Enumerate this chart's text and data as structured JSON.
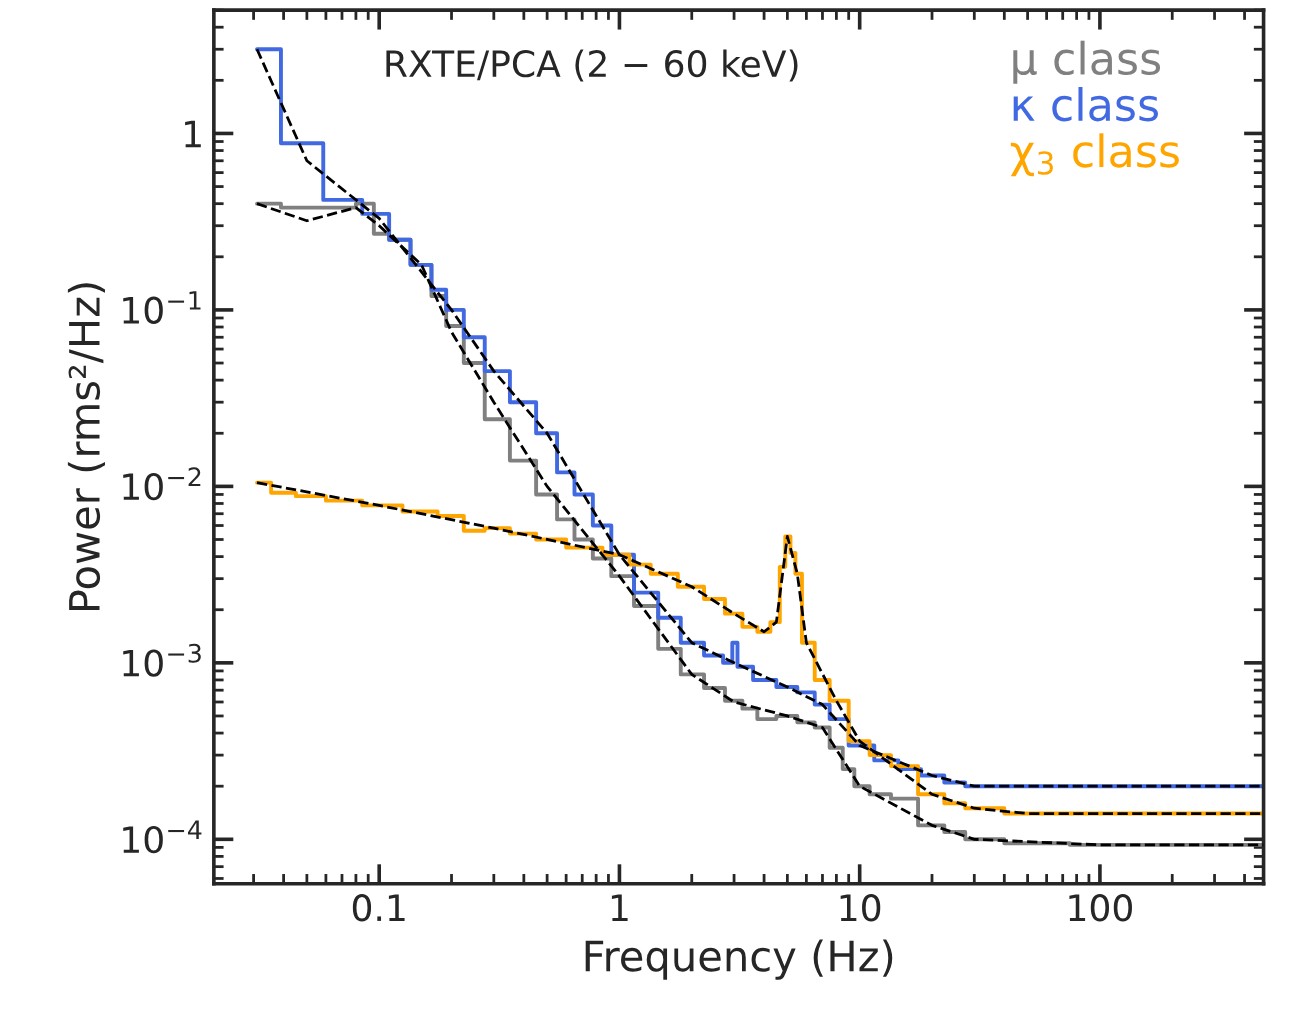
{
  "chart_data": {
    "type": "step",
    "xlabel": "Frequency (Hz)",
    "ylabel": "Power (rms²/Hz)",
    "log": "xy",
    "xlim": [
      0.0205,
      480
    ],
    "ylim": [
      5.6e-05,
      5
    ],
    "xticks": [
      0.1,
      1,
      10,
      100
    ],
    "yticks": [
      {
        "value": 0.0001,
        "label": "10$^{−4}$"
      },
      {
        "value": 0.001,
        "label": "10$^{−3}$"
      },
      {
        "value": 0.01,
        "label": "10$^{−2}$"
      },
      {
        "value": 0.1,
        "label": "10$^{−1}$"
      },
      1
    ],
    "grid": false,
    "annotations": [
      "RXTE/PCA (2 − 60 keV)"
    ],
    "series": [
      {
        "name": "μ class",
        "color": "#808080",
        "x": [
          0.031,
          0.047,
          0.07,
          0.09,
          0.1,
          0.12,
          0.15,
          0.18,
          0.2,
          0.25,
          0.3,
          0.4,
          0.5,
          0.6,
          0.7,
          0.85,
          1,
          1.3,
          1.6,
          2,
          2.5,
          3,
          3.5,
          4,
          5,
          6,
          7,
          8,
          9,
          10,
          12,
          15,
          20,
          25,
          30,
          50,
          100,
          200,
          480
        ],
        "values": [
          0.4,
          0.38,
          0.38,
          0.4,
          0.27,
          0.25,
          0.18,
          0.12,
          0.081,
          0.05,
          0.024,
          0.014,
          0.009,
          0.0065,
          0.005,
          0.0039,
          0.0031,
          0.0021,
          0.0012,
          0.00086,
          0.00072,
          0.00061,
          0.00055,
          0.00048,
          0.0005,
          0.00046,
          0.00043,
          0.00033,
          0.00025,
          0.0002,
          0.00018,
          0.00017,
          0.00012,
          0.00011,
          0.0001,
          9.5e-05,
          9.3e-05,
          9.3e-05,
          9.3e-05
        ]
      },
      {
        "name": "κ class",
        "color": "#4169e1",
        "x": [
          0.031,
          0.047,
          0.07,
          0.1,
          0.12,
          0.15,
          0.18,
          0.2,
          0.25,
          0.3,
          0.4,
          0.5,
          0.6,
          0.7,
          0.85,
          1,
          1.3,
          1.6,
          2,
          2.5,
          2.9,
          3,
          3.2,
          4,
          5,
          6,
          7,
          8,
          10,
          13,
          16,
          20,
          25,
          30,
          50,
          100,
          200,
          480
        ],
        "values": [
          3.0,
          0.88,
          0.42,
          0.35,
          0.25,
          0.18,
          0.13,
          0.1,
          0.07,
          0.045,
          0.03,
          0.02,
          0.012,
          0.009,
          0.006,
          0.0041,
          0.0025,
          0.0018,
          0.0013,
          0.0011,
          0.001,
          0.0013,
          0.00095,
          0.0008,
          0.00073,
          0.00068,
          0.00058,
          0.00048,
          0.00034,
          0.00028,
          0.00025,
          0.00023,
          0.00021,
          0.0002,
          0.0002,
          0.0002,
          0.0002,
          0.0002
        ]
      },
      {
        "name": "χ$_{3}$ class",
        "color": "#ffa500",
        "x": [
          0.031,
          0.04,
          0.05,
          0.07,
          0.1,
          0.15,
          0.2,
          0.25,
          0.3,
          0.4,
          0.5,
          0.7,
          1,
          1.2,
          1.5,
          2,
          2.5,
          3,
          3.5,
          4,
          4.5,
          4.8,
          5,
          5.3,
          5.5,
          6,
          7,
          8,
          10,
          12,
          15,
          20,
          25,
          30,
          50,
          100,
          200,
          480
        ],
        "values": [
          0.0105,
          0.0092,
          0.0088,
          0.0083,
          0.0078,
          0.0072,
          0.0068,
          0.0056,
          0.0058,
          0.0054,
          0.005,
          0.0045,
          0.0041,
          0.0036,
          0.0032,
          0.0027,
          0.0023,
          0.0019,
          0.0016,
          0.0015,
          0.0017,
          0.0035,
          0.0052,
          0.0042,
          0.0032,
          0.0013,
          0.0008,
          0.00061,
          0.00036,
          0.0003,
          0.00026,
          0.00018,
          0.00016,
          0.00015,
          0.00014,
          0.00014,
          0.00014,
          0.00014
        ]
      },
      {
        "type": "line",
        "line_style": "dashed",
        "color": "#000000",
        "x": [
          0.031,
          0.05,
          0.08,
          0.1,
          0.15,
          0.2,
          0.3,
          0.5,
          1,
          2,
          3,
          5,
          7,
          10,
          20,
          30,
          100,
          480
        ],
        "values": [
          0.4,
          0.32,
          0.38,
          0.3,
          0.18,
          0.075,
          0.03,
          0.01,
          0.0031,
          0.00086,
          0.0006,
          0.0005,
          0.00043,
          0.0002,
          0.00012,
          0.0001,
          9.3e-05,
          9.3e-05
        ]
      },
      {
        "type": "line",
        "line_style": "dashed",
        "color": "#000000",
        "x": [
          0.031,
          0.05,
          0.1,
          0.2,
          0.3,
          0.5,
          1,
          2,
          3,
          5,
          7,
          10,
          20,
          30,
          100,
          480
        ],
        "values": [
          3.0,
          0.7,
          0.33,
          0.1,
          0.045,
          0.02,
          0.0041,
          0.0013,
          0.001,
          0.00073,
          0.00058,
          0.00034,
          0.00023,
          0.0002,
          0.0002,
          0.0002
        ]
      },
      {
        "type": "line",
        "line_style": "dashed",
        "color": "#000000",
        "x": [
          0.031,
          0.1,
          0.3,
          1,
          2,
          3,
          4,
          4.5,
          5,
          5.5,
          6,
          8,
          10,
          20,
          30,
          50,
          480
        ],
        "values": [
          0.0105,
          0.0078,
          0.0058,
          0.0041,
          0.0027,
          0.0019,
          0.0015,
          0.0017,
          0.0052,
          0.0032,
          0.0013,
          0.00061,
          0.00036,
          0.00018,
          0.00015,
          0.00014,
          0.00014
        ]
      }
    ]
  }
}
